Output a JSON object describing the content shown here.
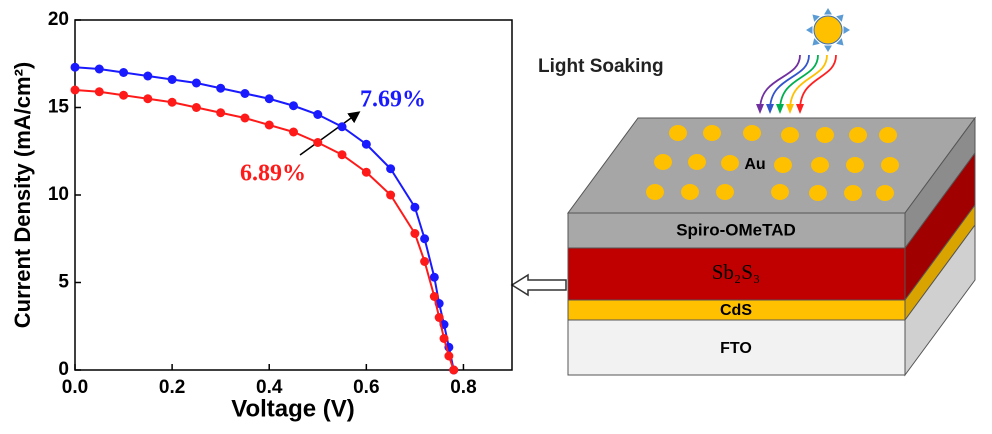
{
  "chart_data": {
    "type": "line",
    "xlabel": "Voltage (V)",
    "ylabel": "Current Density (mA/cm²)",
    "x": [
      0,
      0.05,
      0.1,
      0.15,
      0.2,
      0.25,
      0.3,
      0.35,
      0.4,
      0.45,
      0.5,
      0.55,
      0.6,
      0.65,
      0.7,
      0.72,
      0.74,
      0.75,
      0.76,
      0.77,
      0.78
    ],
    "series": [
      {
        "color": "#1a1aff",
        "values": [
          17.3,
          17.2,
          17.0,
          16.8,
          16.6,
          16.4,
          16.1,
          15.8,
          15.5,
          15.1,
          14.6,
          13.9,
          12.9,
          11.5,
          9.3,
          7.5,
          5.3,
          3.8,
          2.6,
          1.3,
          0
        ]
      },
      {
        "color": "#ff1a1a",
        "values": [
          16.0,
          15.9,
          15.7,
          15.5,
          15.3,
          15.0,
          14.7,
          14.4,
          14.0,
          13.6,
          13.0,
          12.3,
          11.3,
          10.0,
          7.8,
          6.2,
          4.2,
          3.0,
          1.8,
          0.8,
          0
        ]
      }
    ],
    "annotations": [
      {
        "text": "7.69%",
        "color": "#1a1aff"
      },
      {
        "text": "6.89%",
        "color": "#ff1a1a"
      }
    ],
    "xlim": [
      0,
      0.9
    ],
    "xticks": [
      {
        "value": 0,
        "label": "0.0"
      },
      {
        "value": 0.2,
        "label": "0.2"
      },
      {
        "value": 0.4,
        "label": "0.4"
      },
      {
        "value": 0.6,
        "label": "0.6"
      },
      {
        "value": 0.8,
        "label": "0.8"
      }
    ],
    "ylim": [
      0,
      20
    ],
    "yticks": [
      0,
      5,
      10,
      15,
      20
    ]
  },
  "diagram": {
    "title": "Light Soaking",
    "top_label": "Au",
    "layers": [
      "Spiro-OMeTAD",
      "Sb₂S₃",
      "CdS",
      "FTO"
    ]
  }
}
